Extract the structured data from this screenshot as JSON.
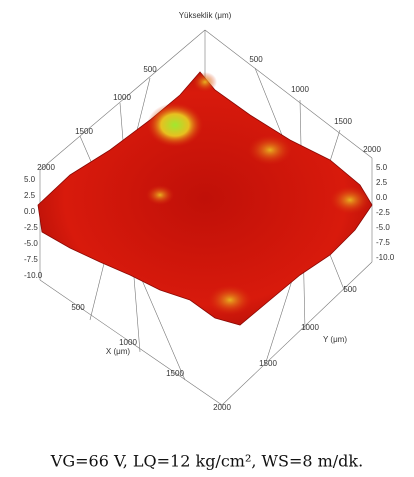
{
  "figure": {
    "z_axis_title": "Yükseklik (μm)",
    "x_axis_title": "X (μm)",
    "y_axis_title": "Y (μm)",
    "back_left_ticks": [
      "500",
      "1000",
      "1500",
      "2000"
    ],
    "back_right_ticks": [
      "500",
      "1000",
      "1500",
      "2000"
    ],
    "z_left_ticks": [
      "5.0",
      "2.5",
      "0.0",
      "-2.5",
      "-5.0",
      "-7.5",
      "-10.0"
    ],
    "z_right_ticks": [
      "5.0",
      "2.5",
      "0.0",
      "-2.5",
      "-5.0",
      "-7.5",
      "-10.0"
    ],
    "x_ticks": [
      "500",
      "1000",
      "1500",
      "2000"
    ],
    "y_ticks": [
      "500",
      "1000",
      "1500"
    ],
    "caption": "VG=66 V, LQ=12 kg/cm², WS=8 m/dk."
  }
}
